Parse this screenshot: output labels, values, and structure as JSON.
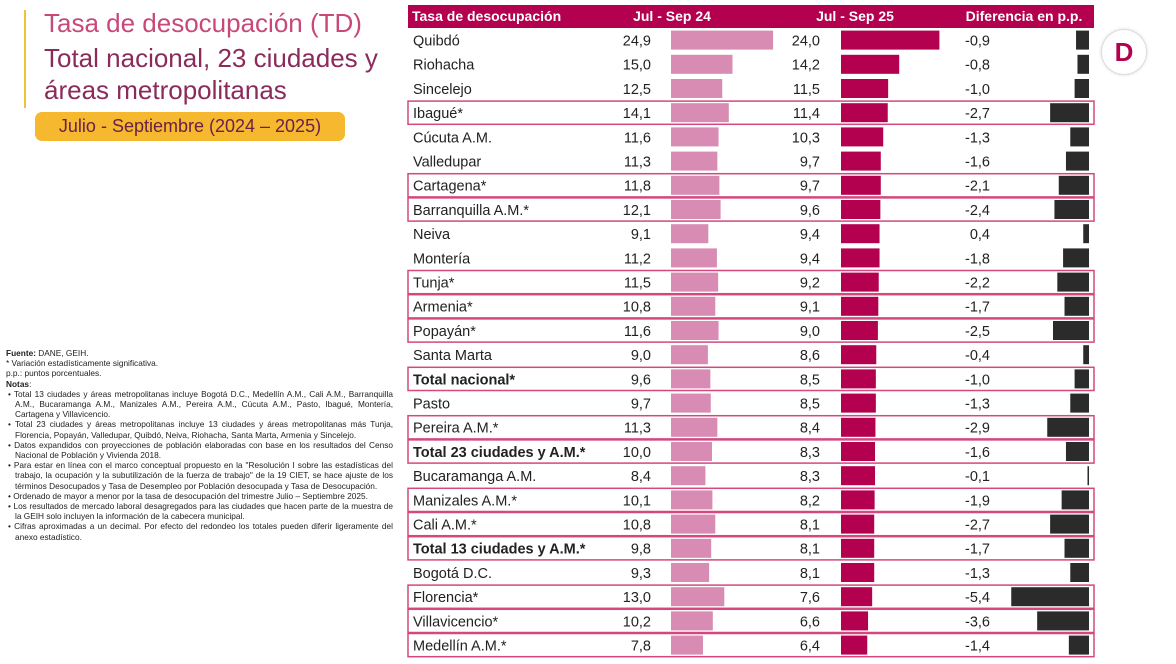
{
  "title": {
    "line1": "Tasa de desocupación (TD)",
    "line2": "Total nacional, 23 ciudades y áreas metropolitanas"
  },
  "period": "Julio - Septiembre (2024 – 2025)",
  "notes": {
    "source_label": "Fuente:",
    "source_value": " DANE, GEIH.",
    "asterisk_note": "* Variación estadísticamente significativa.",
    "pp_note": "p.p.: puntos porcentuales.",
    "notes_label": "Notas",
    "bullets": [
      "• Total 13 ciudades y áreas metropolitanas incluye Bogotá D.C., Medellín A.M., Cali A.M., Barranquilla A.M., Bucaramanga A.M., Manizales A.M., Pereira A.M., Cúcuta A.M., Pasto, Ibagué, Montería, Cartagena y Villavicencio.",
      "• Total 23 ciudades y áreas metropolitanas incluye 13 ciudades y áreas metropolitanas más Tunja, Florencia, Popayán, Valledupar, Quibdó, Neiva, Riohacha, Santa Marta, Armenia y Sincelejo.",
      "• Datos expandidos con proyecciones de población elaboradas con base en los resultados del Censo Nacional de Población y Vivienda 2018.",
      "• Para estar en línea con el marco conceptual propuesto en la \"Resolución I sobre las estadísticas del trabajo, la ocupación y la subutilización de la fuerza de trabajo\" de la 19 CIET, se hace ajuste de los términos Desocupados y Tasa de Desempleo por Población desocupada y Tasa de Desocupación.",
      "• Ordenado de mayor a menor por la tasa de desocupación del trimestre Julio – Septiembre 2025.",
      "• Los resultados de mercado laboral desagregados para las ciudades que hacen parte de la muestra de la GEIH solo incluyen la información de la cabecera municipal.",
      "• Cifras aproximadas a un decimal. Por efecto del redondeo los totales pueden diferir ligeramente del anexo estadístico."
    ]
  },
  "logo_letter": "D",
  "colors": {
    "header_bg": "#b3004f",
    "bar_2024": "#d98cb3",
    "bar_2025": "#b3004f",
    "bar_diff": "#2b2b2b",
    "highlight_border": "#d4487e",
    "title_pink": "#c8487a",
    "title_plum": "#8a2b5a",
    "badge": "#f5b82e"
  },
  "chart_data": {
    "type": "table",
    "columns": [
      "Tasa de desocupación",
      "Jul - Sep 24",
      "Jul - Sep 25",
      "Diferencia en p.p."
    ],
    "rows": [
      {
        "label": "Quibdó",
        "v2024": "24,9",
        "v2025": "24,0",
        "diff": "-0,9",
        "n2024": 24.9,
        "n2025": 24.0,
        "ndiff": -0.9,
        "highlight": false,
        "bold": false
      },
      {
        "label": "Riohacha",
        "v2024": "15,0",
        "v2025": "14,2",
        "diff": "-0,8",
        "n2024": 15.0,
        "n2025": 14.2,
        "ndiff": -0.8,
        "highlight": false,
        "bold": false
      },
      {
        "label": "Sincelejo",
        "v2024": "12,5",
        "v2025": "11,5",
        "diff": "-1,0",
        "n2024": 12.5,
        "n2025": 11.5,
        "ndiff": -1.0,
        "highlight": false,
        "bold": false
      },
      {
        "label": "Ibagué*",
        "v2024": "14,1",
        "v2025": "11,4",
        "diff": "-2,7",
        "n2024": 14.1,
        "n2025": 11.4,
        "ndiff": -2.7,
        "highlight": true,
        "bold": false
      },
      {
        "label": "Cúcuta A.M.",
        "v2024": "11,6",
        "v2025": "10,3",
        "diff": "-1,3",
        "n2024": 11.6,
        "n2025": 10.3,
        "ndiff": -1.3,
        "highlight": false,
        "bold": false
      },
      {
        "label": "Valledupar",
        "v2024": "11,3",
        "v2025": "9,7",
        "diff": "-1,6",
        "n2024": 11.3,
        "n2025": 9.7,
        "ndiff": -1.6,
        "highlight": false,
        "bold": false
      },
      {
        "label": "Cartagena*",
        "v2024": "11,8",
        "v2025": "9,7",
        "diff": "-2,1",
        "n2024": 11.8,
        "n2025": 9.7,
        "ndiff": -2.1,
        "highlight": true,
        "bold": false
      },
      {
        "label": "Barranquilla A.M.*",
        "v2024": "12,1",
        "v2025": "9,6",
        "diff": "-2,4",
        "n2024": 12.1,
        "n2025": 9.6,
        "ndiff": -2.4,
        "highlight": true,
        "bold": false
      },
      {
        "label": "Neiva",
        "v2024": "9,1",
        "v2025": "9,4",
        "diff": "0,4",
        "n2024": 9.1,
        "n2025": 9.4,
        "ndiff": 0.4,
        "highlight": false,
        "bold": false
      },
      {
        "label": "Montería",
        "v2024": "11,2",
        "v2025": "9,4",
        "diff": "-1,8",
        "n2024": 11.2,
        "n2025": 9.4,
        "ndiff": -1.8,
        "highlight": false,
        "bold": false
      },
      {
        "label": "Tunja*",
        "v2024": "11,5",
        "v2025": "9,2",
        "diff": "-2,2",
        "n2024": 11.5,
        "n2025": 9.2,
        "ndiff": -2.2,
        "highlight": true,
        "bold": false
      },
      {
        "label": "Armenia*",
        "v2024": "10,8",
        "v2025": "9,1",
        "diff": "-1,7",
        "n2024": 10.8,
        "n2025": 9.1,
        "ndiff": -1.7,
        "highlight": true,
        "bold": false
      },
      {
        "label": "Popayán*",
        "v2024": "11,6",
        "v2025": "9,0",
        "diff": "-2,5",
        "n2024": 11.6,
        "n2025": 9.0,
        "ndiff": -2.5,
        "highlight": true,
        "bold": false
      },
      {
        "label": "Santa Marta",
        "v2024": "9,0",
        "v2025": "8,6",
        "diff": "-0,4",
        "n2024": 9.0,
        "n2025": 8.6,
        "ndiff": -0.4,
        "highlight": false,
        "bold": false
      },
      {
        "label": "Total nacional*",
        "v2024": "9,6",
        "v2025": "8,5",
        "diff": "-1,0",
        "n2024": 9.6,
        "n2025": 8.5,
        "ndiff": -1.0,
        "highlight": true,
        "bold": true
      },
      {
        "label": "Pasto",
        "v2024": "9,7",
        "v2025": "8,5",
        "diff": "-1,3",
        "n2024": 9.7,
        "n2025": 8.5,
        "ndiff": -1.3,
        "highlight": false,
        "bold": false
      },
      {
        "label": "Pereira A.M.*",
        "v2024": "11,3",
        "v2025": "8,4",
        "diff": "-2,9",
        "n2024": 11.3,
        "n2025": 8.4,
        "ndiff": -2.9,
        "highlight": true,
        "bold": false
      },
      {
        "label": "Total 23 ciudades y A.M.*",
        "v2024": "10,0",
        "v2025": "8,3",
        "diff": "-1,6",
        "n2024": 10.0,
        "n2025": 8.3,
        "ndiff": -1.6,
        "highlight": true,
        "bold": true
      },
      {
        "label": "Bucaramanga A.M.",
        "v2024": "8,4",
        "v2025": "8,3",
        "diff": "-0,1",
        "n2024": 8.4,
        "n2025": 8.3,
        "ndiff": -0.1,
        "highlight": false,
        "bold": false
      },
      {
        "label": "Manizales A.M.*",
        "v2024": "10,1",
        "v2025": "8,2",
        "diff": "-1,9",
        "n2024": 10.1,
        "n2025": 8.2,
        "ndiff": -1.9,
        "highlight": true,
        "bold": false
      },
      {
        "label": "Cali A.M.*",
        "v2024": "10,8",
        "v2025": "8,1",
        "diff": "-2,7",
        "n2024": 10.8,
        "n2025": 8.1,
        "ndiff": -2.7,
        "highlight": true,
        "bold": false
      },
      {
        "label": "Total 13 ciudades y A.M.*",
        "v2024": "9,8",
        "v2025": "8,1",
        "diff": "-1,7",
        "n2024": 9.8,
        "n2025": 8.1,
        "ndiff": -1.7,
        "highlight": true,
        "bold": true
      },
      {
        "label": "Bogotá D.C.",
        "v2024": "9,3",
        "v2025": "8,1",
        "diff": "-1,3",
        "n2024": 9.3,
        "n2025": 8.1,
        "ndiff": -1.3,
        "highlight": false,
        "bold": false
      },
      {
        "label": "Florencia*",
        "v2024": "13,0",
        "v2025": "7,6",
        "diff": "-5,4",
        "n2024": 13.0,
        "n2025": 7.6,
        "ndiff": -5.4,
        "highlight": true,
        "bold": false
      },
      {
        "label": "Villavicencio*",
        "v2024": "10,2",
        "v2025": "6,6",
        "diff": "-3,6",
        "n2024": 10.2,
        "n2025": 6.6,
        "ndiff": -3.6,
        "highlight": true,
        "bold": false
      },
      {
        "label": "Medellín A.M.*",
        "v2024": "7,8",
        "v2025": "6,4",
        "diff": "-1,4",
        "n2024": 7.8,
        "n2025": 6.4,
        "ndiff": -1.4,
        "highlight": true,
        "bold": false
      }
    ]
  }
}
